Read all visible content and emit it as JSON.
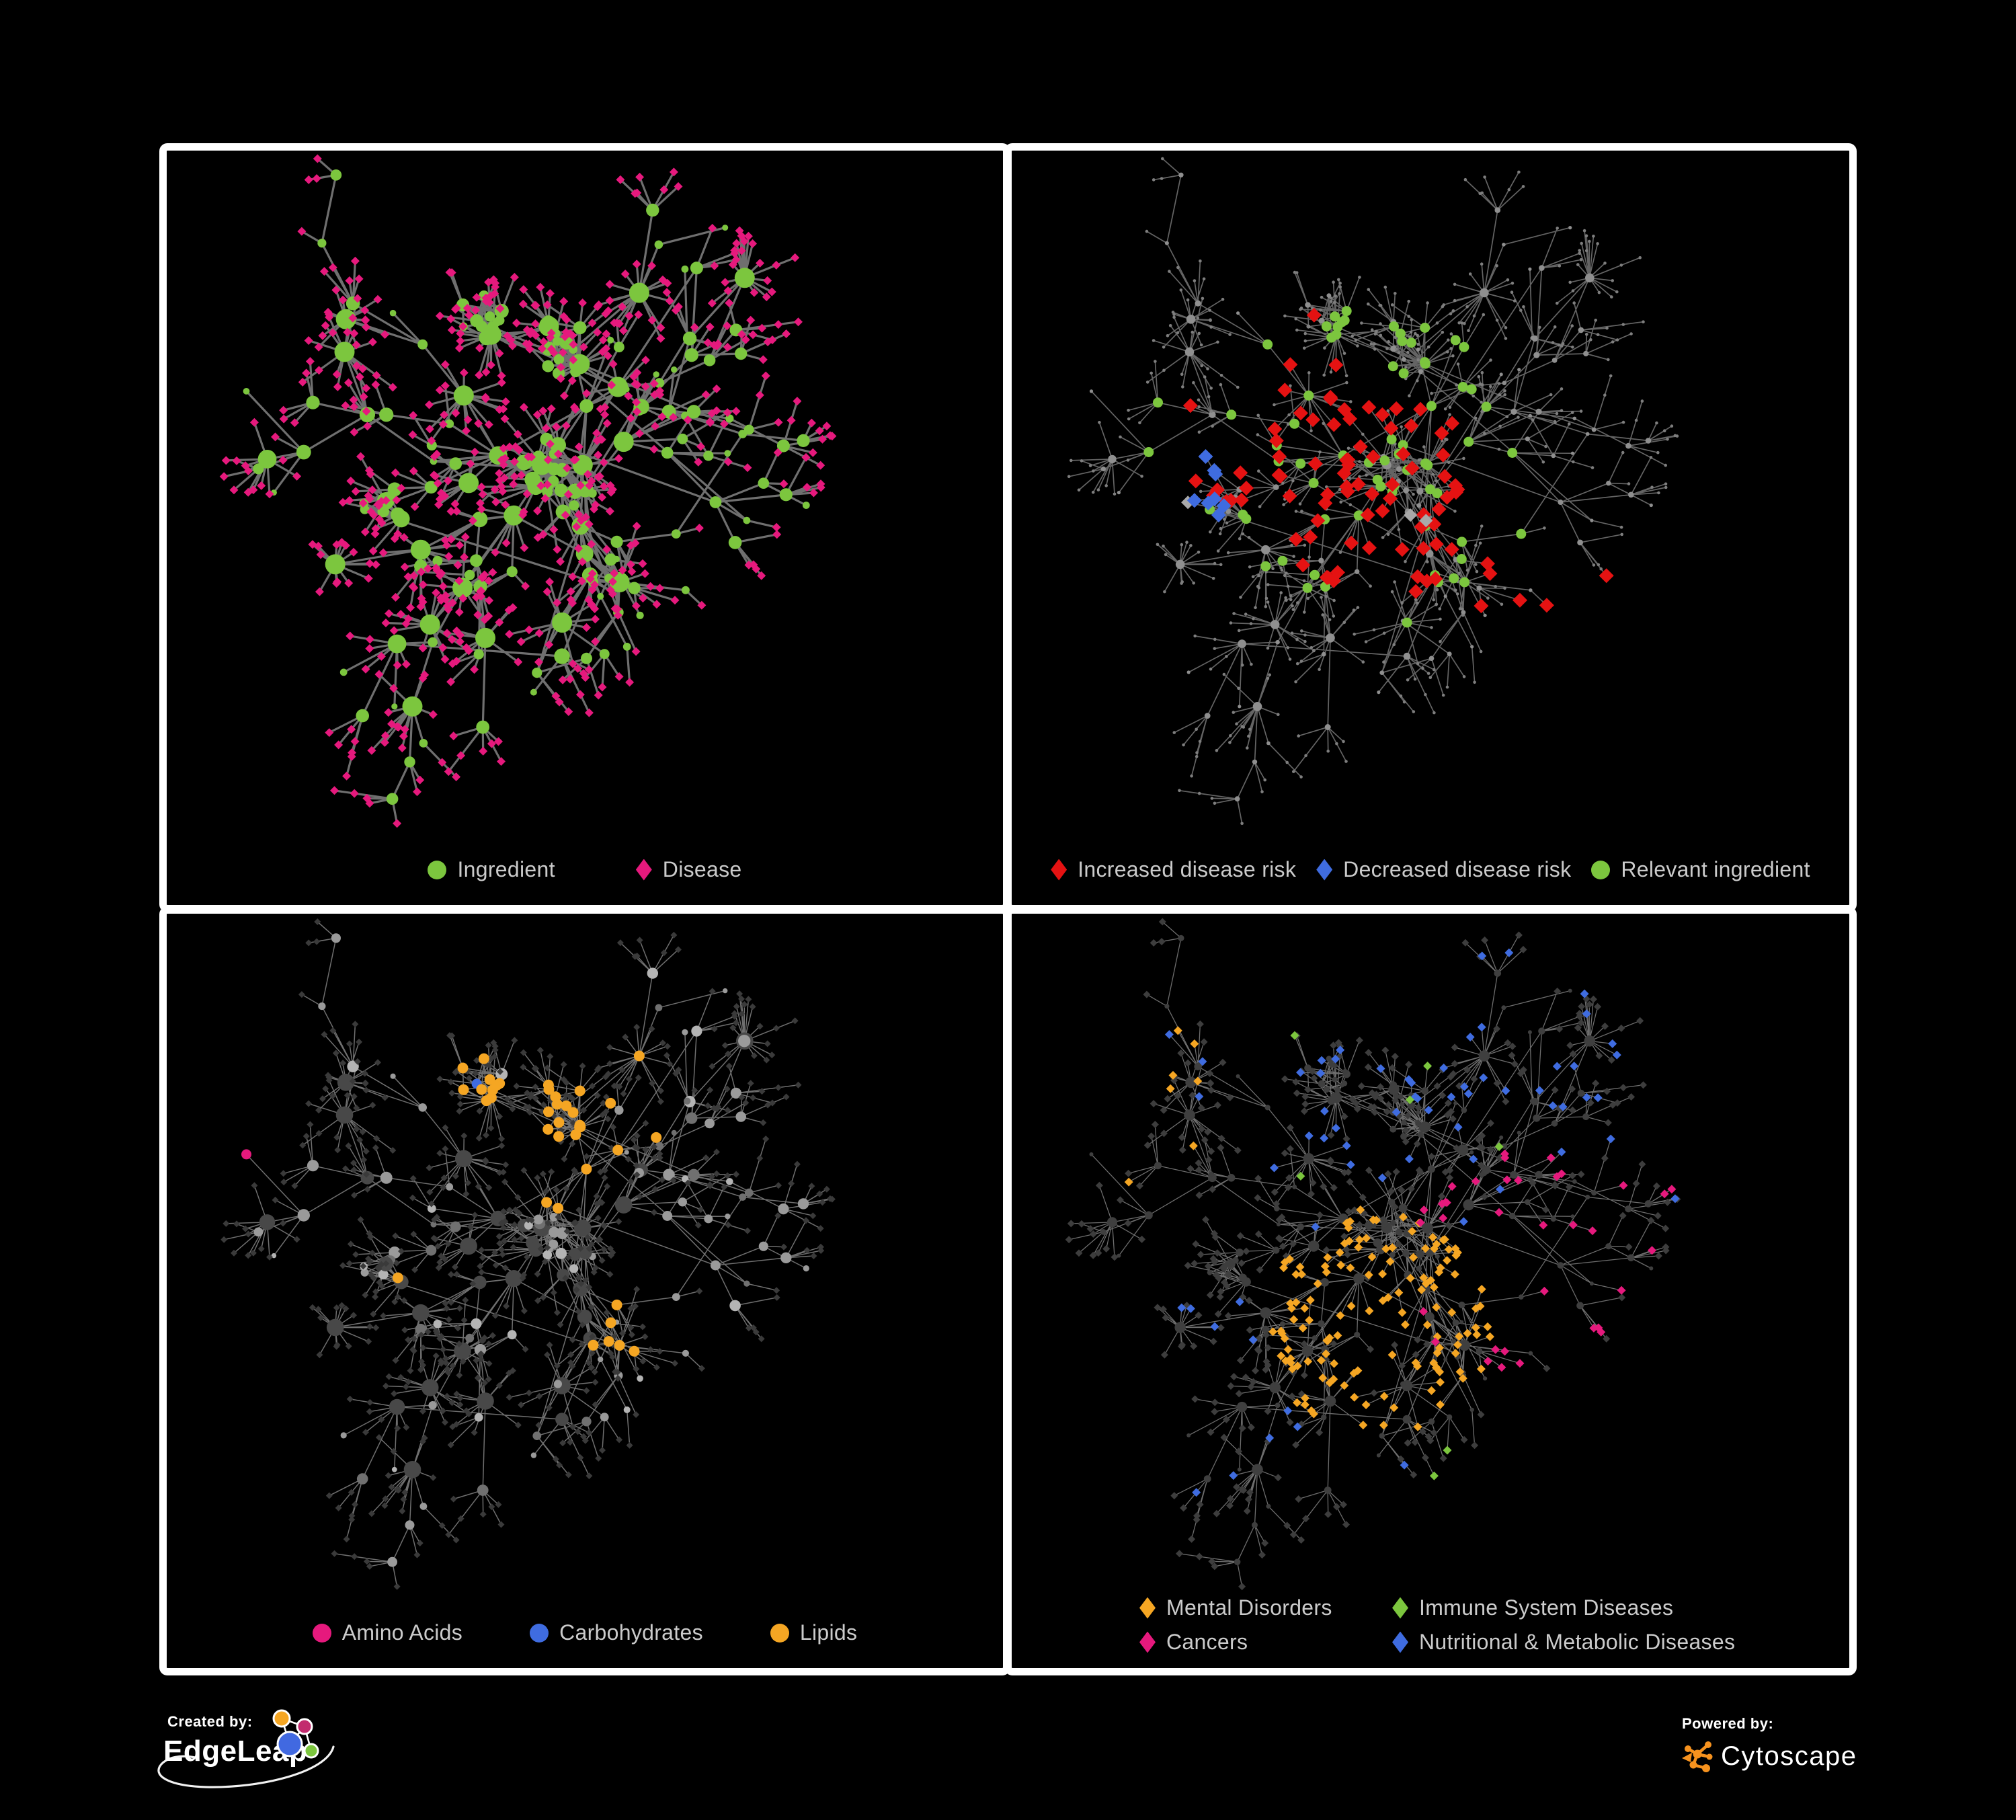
{
  "branding": {
    "created_by_label": "Created by:",
    "edgeleap_name": "EdgeLeap",
    "powered_by_label": "Powered by:",
    "cytoscape_name": "Cytoscape"
  },
  "colors": {
    "background": "#000000",
    "panel_border": "#ffffff",
    "legend_text": "#cbcbcb",
    "green": "#7cc63e",
    "magenta": "#e6197d",
    "red": "#e51212",
    "blue": "#3f6ce0",
    "amber": "#f5a623",
    "cytoscape_orange": "#f6921e"
  },
  "panels": [
    {
      "name": "ingredient-disease-network",
      "legend": [
        {
          "label": "Ingredient",
          "shape": "circle",
          "color": "#7cc63e"
        },
        {
          "label": "Disease",
          "shape": "diamond",
          "color": "#e6197d"
        }
      ]
    },
    {
      "name": "disease-risk-network",
      "legend": [
        {
          "label": "Increased disease risk",
          "shape": "diamond",
          "color": "#e51212"
        },
        {
          "label": "Decreased disease risk",
          "shape": "diamond",
          "color": "#3f6ce0"
        },
        {
          "label": "Relevant ingredient",
          "shape": "circle",
          "color": "#7cc63e"
        }
      ]
    },
    {
      "name": "nutrient-class-network",
      "legend": [
        {
          "label": "Amino Acids",
          "shape": "circle",
          "color": "#e6197d"
        },
        {
          "label": "Carbohydrates",
          "shape": "circle",
          "color": "#3f6ce0"
        },
        {
          "label": "Lipids",
          "shape": "circle",
          "color": "#f5a623"
        }
      ]
    },
    {
      "name": "disease-class-network",
      "legend": [
        {
          "label": "Mental Disorders",
          "shape": "diamond",
          "color": "#f5a623"
        },
        {
          "label": "Immune System Diseases",
          "shape": "diamond",
          "color": "#7cc63e"
        },
        {
          "label": "Cancers",
          "shape": "diamond",
          "color": "#e6197d"
        },
        {
          "label": "Nutritional & Metabolic Diseases",
          "shape": "diamond",
          "color": "#3f6ce0"
        }
      ]
    }
  ],
  "network_style": {
    "layout_seed": 1337,
    "panels": [
      {
        "seed2": 11,
        "edge": "#757575",
        "ew": 3.2,
        "eo": 0.95,
        "internal": {
          "shape": "circle",
          "fill": "#7cc63e",
          "rmul": 1.0,
          "rmin": 4.5
        },
        "leaf": {
          "shape": "diamond",
          "fill": "#e6197d",
          "s": 6.5
        },
        "overlays": []
      },
      {
        "seed2": 22,
        "edge": "#6f6f6f",
        "ew": 1.7,
        "eo": 0.9,
        "internal": {
          "shape": "circle",
          "fill": "#8f8f8f",
          "rmul": 0.45,
          "rmin": 2.6
        },
        "leaf": {
          "shape": "circle",
          "fill": "#7e7e7e",
          "s": 2.3
        },
        "overlays": [
          {
            "target": "leaf",
            "shape": "diamond",
            "fill": "#e51212",
            "s": 11,
            "zones": [
              [
                0.43,
                0.5,
                0.13,
                0.45
              ],
              [
                0.25,
                0.44,
                0.07,
                0.3
              ],
              [
                0.6,
                0.6,
                0.07,
                0.3
              ],
              [
                0.61,
                0.87,
                0.045,
                0.5
              ],
              [
                0.73,
                0.64,
                0.04,
                0.55
              ],
              [
                0.36,
                0.33,
                0.08,
                0.2
              ]
            ]
          },
          {
            "target": "leaf",
            "shape": "diamond",
            "fill": "#3f6ce0",
            "s": 11,
            "zones": [
              [
                0.22,
                0.47,
                0.06,
                0.4
              ],
              [
                0.82,
                0.375,
                0.03,
                0.95
              ]
            ]
          },
          {
            "target": "leaf",
            "shape": "diamond",
            "fill": "#a9a9a9",
            "s": 10,
            "zones": [
              [
                0.48,
                0.57,
                0.055,
                0.3
              ],
              [
                0.2,
                0.46,
                0.045,
                0.25
              ],
              [
                0.42,
                0.78,
                0.03,
                0.5
              ],
              [
                0.56,
                0.43,
                0.04,
                0.3
              ]
            ]
          },
          {
            "target": "internal",
            "shape": "circle",
            "fill": "#7cc63e",
            "s": 7.5,
            "zones": [
              [
                0.41,
                0.47,
                0.2,
                0.5
              ],
              [
                0.22,
                0.42,
                0.09,
                0.35
              ],
              [
                0.57,
                0.58,
                0.06,
                0.5
              ],
              [
                0.45,
                0.32,
                0.1,
                0.25
              ],
              [
                0.12,
                0.3,
                0.05,
                0.35
              ]
            ]
          }
        ]
      },
      {
        "seed2": 33,
        "edge": "#ababab",
        "ew": 1.5,
        "eo": 0.65,
        "internal": {
          "shape": "circle",
          "fill": "VARIED",
          "rmul": 0.85,
          "rmin": 3.5
        },
        "leaf": {
          "shape": "diamond",
          "fill": "#3a3a3a",
          "s": 5
        },
        "overlays": [
          {
            "target": "internal",
            "shape": "circle",
            "fill": "#f5a623",
            "s": 8,
            "zones": [
              [
                0.47,
                0.28,
                0.13,
                0.8
              ],
              [
                0.55,
                0.6,
                0.05,
                0.85
              ],
              [
                0.24,
                0.58,
                0.11,
                0.15
              ],
              [
                0.84,
                0.3,
                0.11,
                0.15
              ],
              [
                0.55,
                0.9,
                0.1,
                0.12
              ],
              [
                0.65,
                0.65,
                0.1,
                0.12
              ],
              [
                0.35,
                0.12,
                0.08,
                0.15
              ]
            ]
          },
          {
            "target": "internal",
            "shape": "circle",
            "fill": "#e6197d",
            "s": 7.5,
            "zones": [
              [
                0.2,
                0.72,
                0.07,
                0.35
              ],
              [
                0.67,
                0.85,
                0.06,
                0.35
              ],
              [
                0.88,
                0.55,
                0.08,
                0.25
              ],
              [
                0.45,
                0.07,
                0.06,
                0.35
              ],
              [
                0.72,
                0.08,
                0.05,
                0.3
              ],
              [
                0.93,
                0.8,
                0.05,
                0.4
              ],
              [
                0.07,
                0.4,
                0.05,
                0.3
              ],
              [
                0.04,
                0.75,
                0.04,
                0.3
              ]
            ]
          },
          {
            "target": "internal",
            "shape": "circle",
            "fill": "#3f6ce0",
            "s": 7.5,
            "zones": [
              [
                0.42,
                0.2,
                0.09,
                0.35
              ],
              [
                0.15,
                0.24,
                0.03,
                0.6
              ],
              [
                0.93,
                0.67,
                0.035,
                0.5
              ],
              [
                0.74,
                0.83,
                0.035,
                0.4
              ],
              [
                0.52,
                0.38,
                0.07,
                0.18
              ]
            ]
          }
        ]
      },
      {
        "seed2": 44,
        "edge": "#9b9b9b",
        "ew": 1.3,
        "eo": 0.7,
        "internal": {
          "shape": "circle",
          "fill": "#3f3f3f",
          "rmul": 0.55,
          "rmin": 3
        },
        "leaf": {
          "shape": "diamond",
          "fill": "#3d3d3d",
          "s": 5.5
        },
        "overlays": [
          {
            "target": "leaf",
            "shape": "diamond",
            "fill": "#f5a623",
            "s": 6.5,
            "zones": [
              [
                0.44,
                0.6,
                0.14,
                0.85
              ],
              [
                0.37,
                0.1,
                0.07,
                0.3
              ],
              [
                0.15,
                0.33,
                0.08,
                0.2
              ],
              [
                0.72,
                0.66,
                0.035,
                0.5
              ],
              [
                0.47,
                0.95,
                0.04,
                0.3
              ],
              [
                0.2,
                0.2,
                0.05,
                0.2
              ]
            ]
          },
          {
            "target": "leaf",
            "shape": "diamond",
            "fill": "#e6197d",
            "s": 6.5,
            "zones": [
              [
                0.62,
                0.52,
                0.15,
                0.45
              ],
              [
                0.93,
                0.2,
                0.045,
                0.8
              ],
              [
                0.5,
                0.7,
                0.05,
                0.25
              ],
              [
                0.3,
                0.9,
                0.035,
                0.4
              ],
              [
                0.75,
                0.35,
                0.06,
                0.2
              ]
            ]
          },
          {
            "target": "leaf",
            "shape": "diamond",
            "fill": "#3f6ce0",
            "s": 6.5,
            "zones": [
              [
                0.8,
                0.62,
                0.06,
                0.75
              ],
              [
                0.55,
                0.06,
                0.38,
                0.22
              ],
              [
                0.25,
                0.72,
                0.13,
                0.12
              ],
              [
                0.9,
                0.4,
                0.09,
                0.3
              ],
              [
                0.12,
                0.1,
                0.11,
                0.3
              ],
              [
                0.05,
                0.55,
                0.05,
                0.3
              ],
              [
                0.45,
                0.85,
                0.08,
                0.1
              ],
              [
                0.88,
                0.88,
                0.06,
                0.2
              ]
            ]
          },
          {
            "target": "leaf",
            "shape": "diamond",
            "fill": "#7cc63e",
            "s": 6.5,
            "zones": [
              [
                0.5,
                0.3,
                0.22,
                0.05
              ],
              [
                0.3,
                0.45,
                0.1,
                0.07
              ],
              [
                0.55,
                0.85,
                0.08,
                0.07
              ],
              [
                0.25,
                0.05,
                0.05,
                0.15
              ]
            ]
          }
        ]
      }
    ]
  }
}
